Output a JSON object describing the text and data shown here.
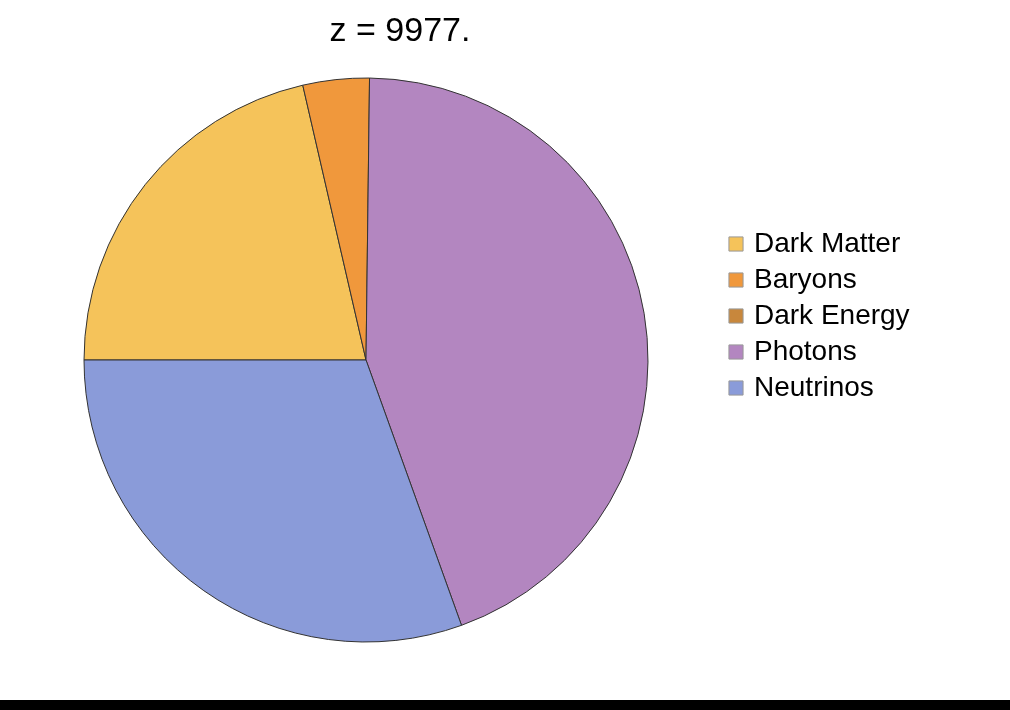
{
  "chart_data": {
    "type": "pie",
    "title": "z = 9977.",
    "categories": [
      "Dark Matter",
      "Baryons",
      "Dark Energy",
      "Photons",
      "Neutrinos"
    ],
    "values": [
      21.4,
      3.8,
      0,
      44.3,
      30.5
    ],
    "colors": [
      "#f5c35a",
      "#f0983c",
      "#c8873c",
      "#b386c0",
      "#8a9bd9"
    ],
    "legend": "right"
  }
}
